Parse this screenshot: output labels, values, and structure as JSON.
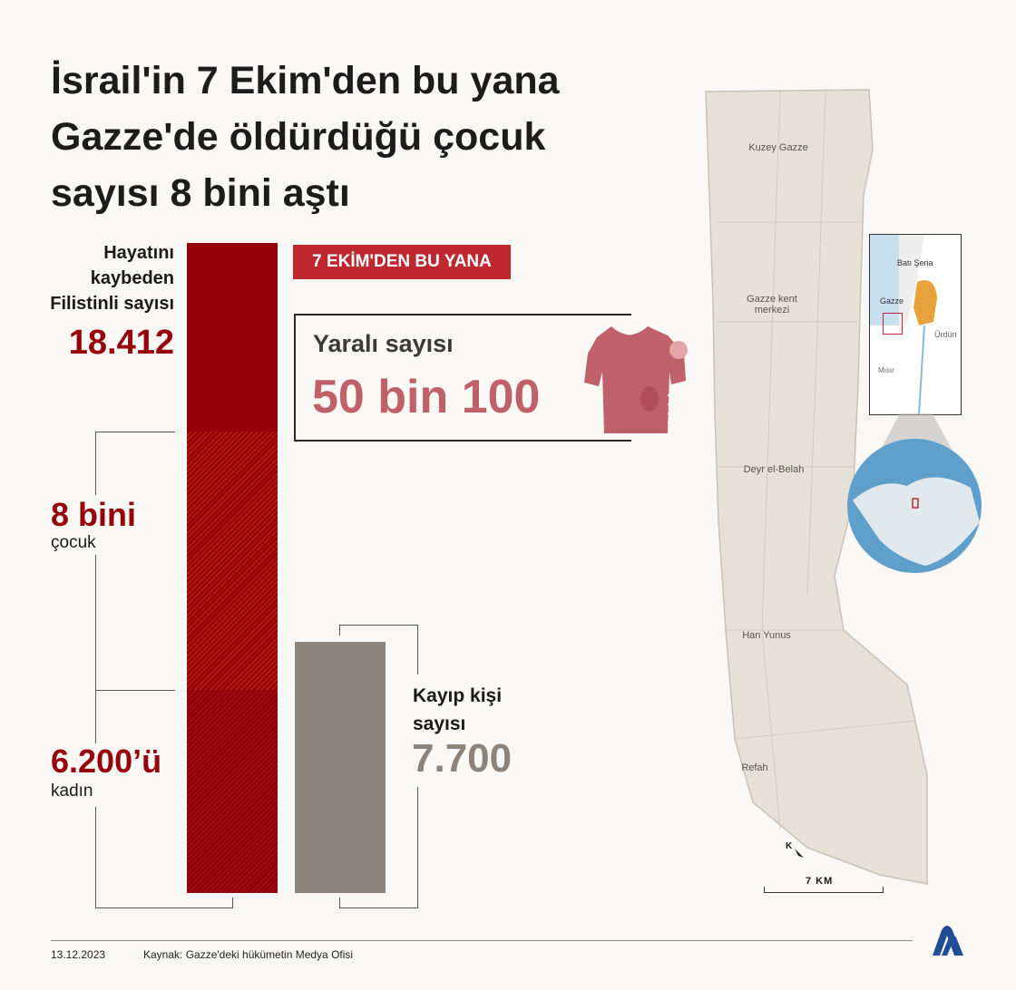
{
  "title_lines": [
    "İsrail'in 7 Ekim'den bu yana",
    "Gazze'de öldürdüğü çocuk",
    "sayısı 8 bini aştı"
  ],
  "killed": {
    "label_lines": [
      "Hayatını",
      "kaybeden",
      "Filistinli sayısı"
    ],
    "value": "18.412"
  },
  "children": {
    "value": "8 bini",
    "label": "çocuk"
  },
  "women": {
    "value": "6.200’ü",
    "label": "kadın"
  },
  "since_tag": "7 EKİM'DEN  BU YANA",
  "wounded": {
    "label": "Yaralı sayısı",
    "value": "50 bin 100"
  },
  "missing": {
    "label_lines": [
      "Kayıp kişi",
      "sayısı"
    ],
    "value": "7.700"
  },
  "map": {
    "regions": [
      "Kuzey Gazze",
      "Gazze kent merkezi",
      "Deyr el-Belah",
      "Han Yunus",
      "Refah"
    ],
    "inset_labels": [
      "Batı Şeria",
      "Gazze",
      "Ürdün",
      "Mısır"
    ],
    "scale": "7 KM",
    "north": "K"
  },
  "footer": {
    "date": "13.12.2023",
    "source": "Kaynak: Gazze'deki hükümetin Medya Ofisi"
  },
  "colors": {
    "dark_red": "#96000a",
    "tag_red": "#c0282f",
    "wounded_pink": "#c06068",
    "missing_gray": "#8c837a"
  }
}
